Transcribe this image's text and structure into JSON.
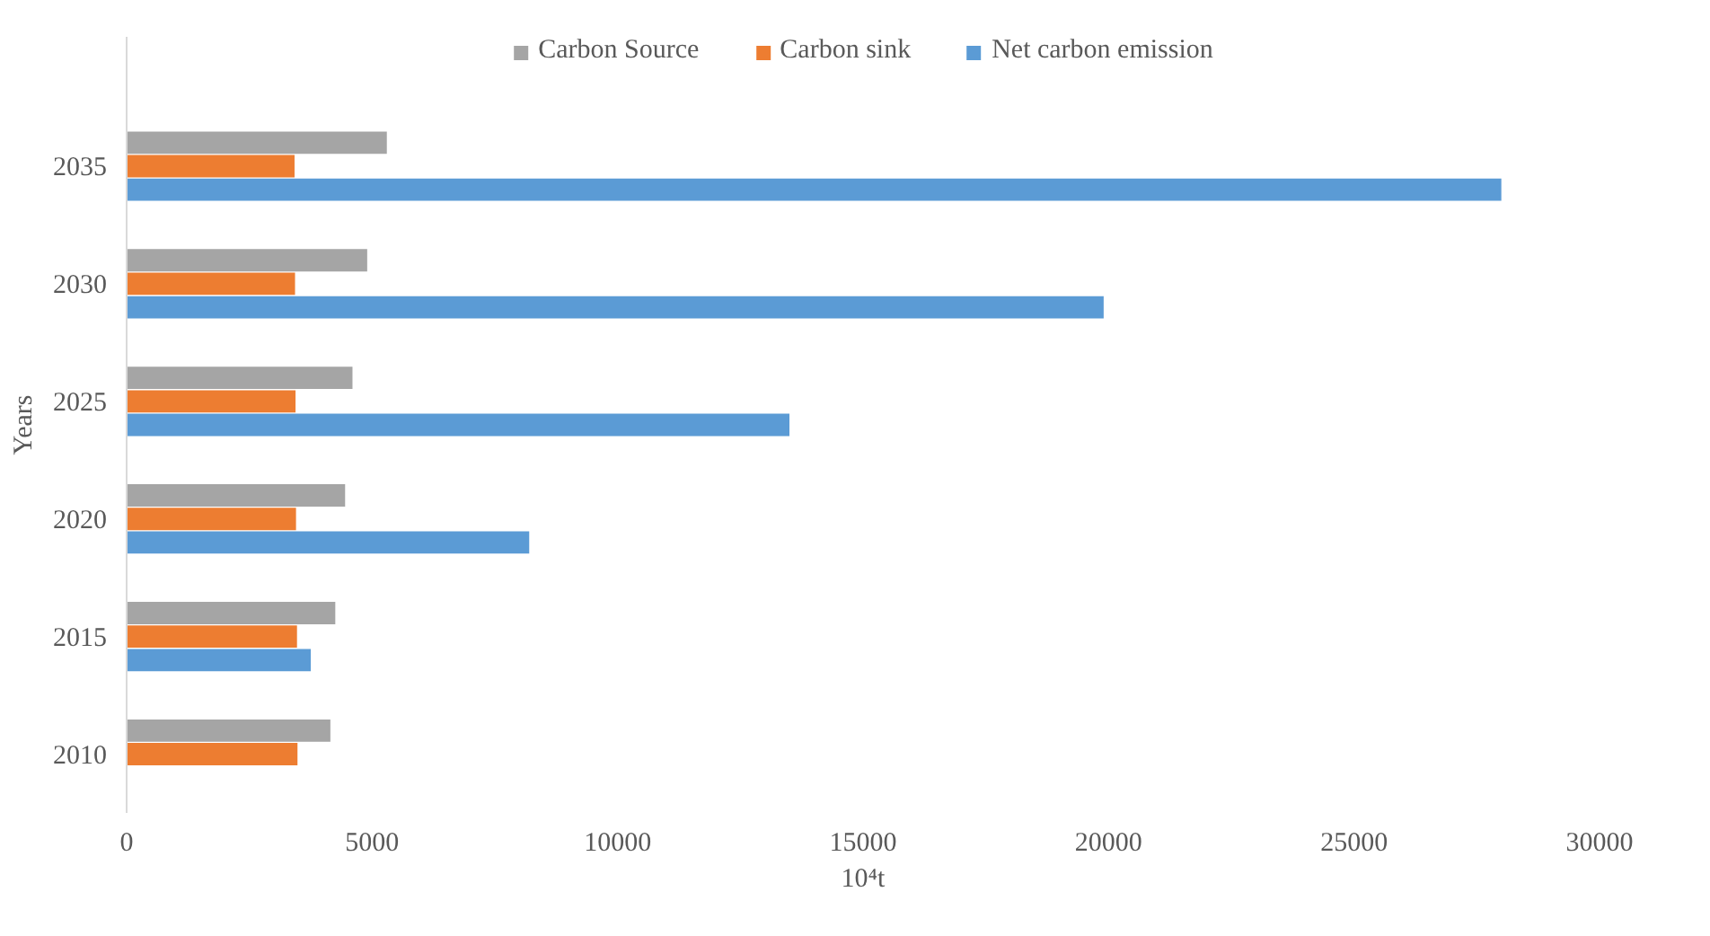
{
  "chart_data": {
    "type": "bar",
    "orientation": "horizontal",
    "xlabel": "10⁴t",
    "ylabel": "Years",
    "categories": [
      "2035",
      "2030",
      "2025",
      "2020",
      "2015",
      "2010"
    ],
    "series": [
      {
        "name": "Carbon Source",
        "color": "#a5a5a5",
        "values": [
          5300,
          4900,
          4600,
          4450,
          4250,
          4150
        ]
      },
      {
        "name": "Carbon sink",
        "color": "#ed7d31",
        "values": [
          3420,
          3430,
          3440,
          3450,
          3470,
          3480
        ]
      },
      {
        "name": "Net carbon emission",
        "color": "#5b9bd5",
        "values": [
          28000,
          19900,
          13500,
          8200,
          3750,
          null
        ]
      }
    ],
    "xlim": [
      0,
      30000
    ],
    "xticks": [
      0,
      5000,
      10000,
      15000,
      20000,
      25000,
      30000
    ],
    "grid": false,
    "legend": "top"
  }
}
